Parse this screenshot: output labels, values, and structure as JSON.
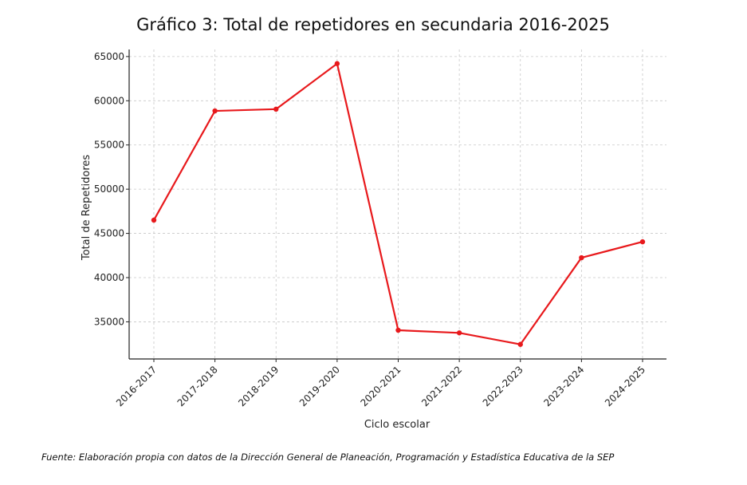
{
  "chart_data": {
    "type": "line",
    "title": "Gráfico 3: Total de repetidores en secundaria 2016-2025",
    "xlabel": "Ciclo escolar",
    "ylabel": "Total de Repetidores",
    "categories": [
      "2016-2017",
      "2017-2018",
      "2018-2019",
      "2019-2020",
      "2020-2021",
      "2021-2022",
      "2022-2023",
      "2023-2024",
      "2024-2025"
    ],
    "series": [
      {
        "values": [
          46500,
          58850,
          59050,
          64200,
          34050,
          33750,
          32450,
          42250,
          44050
        ]
      }
    ],
    "yticks": [
      35000,
      40000,
      45000,
      50000,
      55000,
      60000,
      65000
    ],
    "ylim": [
      30800,
      65800
    ],
    "grid": true,
    "line_color": "#e8191c"
  },
  "footer": {
    "source": "Fuente: Elaboración propia con datos de la Dirección General de Planeación, Programación y Estadística Educativa de la SEP"
  }
}
